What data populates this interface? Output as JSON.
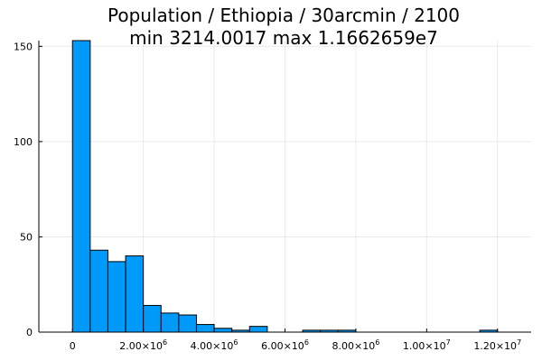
{
  "chart_data": {
    "type": "bar",
    "title_lines": [
      "Population / Ethiopia / 30arcmin / 2100",
      "min 3214.0017  max 1.1662659e7"
    ],
    "xlabel": "",
    "ylabel": "",
    "bin_width": 500000,
    "bins": [
      {
        "start": 0,
        "count": 153
      },
      {
        "start": 500000,
        "count": 43
      },
      {
        "start": 1000000,
        "count": 37
      },
      {
        "start": 1500000,
        "count": 40
      },
      {
        "start": 2000000,
        "count": 14
      },
      {
        "start": 2500000,
        "count": 10
      },
      {
        "start": 3000000,
        "count": 9
      },
      {
        "start": 3500000,
        "count": 4
      },
      {
        "start": 4000000,
        "count": 2
      },
      {
        "start": 4500000,
        "count": 1
      },
      {
        "start": 5000000,
        "count": 3
      },
      {
        "start": 5500000,
        "count": 0
      },
      {
        "start": 6000000,
        "count": 0
      },
      {
        "start": 6500000,
        "count": 1
      },
      {
        "start": 7000000,
        "count": 1
      },
      {
        "start": 7500000,
        "count": 1
      },
      {
        "start": 8000000,
        "count": 0
      },
      {
        "start": 8500000,
        "count": 0
      },
      {
        "start": 9000000,
        "count": 0
      },
      {
        "start": 9500000,
        "count": 0
      },
      {
        "start": 10000000,
        "count": 0
      },
      {
        "start": 10500000,
        "count": 0
      },
      {
        "start": 11000000,
        "count": 0
      },
      {
        "start": 11500000,
        "count": 1
      }
    ],
    "xlim": [
      -950000,
      12950000
    ],
    "ylim": [
      0,
      153
    ],
    "x_ticks": [
      {
        "value": 0,
        "mantissa": "0",
        "exponent": ""
      },
      {
        "value": 2000000,
        "mantissa": "2.00×10",
        "exponent": "6"
      },
      {
        "value": 4000000,
        "mantissa": "4.00×10",
        "exponent": "6"
      },
      {
        "value": 6000000,
        "mantissa": "6.00×10",
        "exponent": "6"
      },
      {
        "value": 8000000,
        "mantissa": "8.00×10",
        "exponent": "6"
      },
      {
        "value": 10000000,
        "mantissa": "1.00×10",
        "exponent": "7"
      },
      {
        "value": 12000000,
        "mantissa": "1.20×10",
        "exponent": "7"
      }
    ],
    "y_ticks": [
      0,
      50,
      100,
      150
    ],
    "grid": true,
    "legend": false,
    "bar_color": "#009AFA",
    "edge_color": "#000000"
  }
}
